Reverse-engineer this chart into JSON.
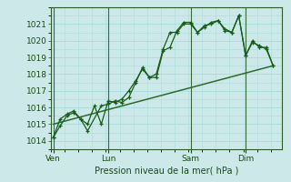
{
  "background_color": "#cce8e8",
  "grid_color": "#aadddd",
  "line_color_main": "#1a5c1a",
  "line_color_trend": "#2d6b2d",
  "xlabel": "Pression niveau de la mer( hPa )",
  "ylim": [
    1013.5,
    1022.0
  ],
  "yticks": [
    1014,
    1015,
    1016,
    1017,
    1018,
    1019,
    1020,
    1021
  ],
  "day_labels": [
    "Ven",
    "Lun",
    "Sam",
    "Dim"
  ],
  "day_positions": [
    0,
    48,
    120,
    168
  ],
  "series1_x": [
    0,
    6,
    12,
    18,
    24,
    30,
    42,
    48,
    54,
    60,
    66,
    72,
    78,
    84,
    90,
    96,
    102,
    108,
    114,
    120,
    126,
    132,
    138,
    144,
    150,
    156,
    162,
    168,
    174,
    180,
    186,
    192
  ],
  "series1_y": [
    1014.2,
    1014.9,
    1015.5,
    1015.7,
    1015.3,
    1014.6,
    1016.1,
    1016.2,
    1016.4,
    1016.3,
    1016.6,
    1017.5,
    1018.4,
    1017.8,
    1017.8,
    1019.4,
    1019.6,
    1020.6,
    1021.1,
    1021.1,
    1020.5,
    1020.9,
    1021.0,
    1021.2,
    1020.6,
    1020.5,
    1021.5,
    1019.1,
    1020.0,
    1019.6,
    1019.6,
    1018.5
  ],
  "series2_x": [
    0,
    6,
    12,
    18,
    24,
    30,
    36,
    42,
    48,
    54,
    60,
    66,
    72,
    78,
    84,
    90,
    96,
    102,
    108,
    114,
    120,
    126,
    132,
    138,
    144,
    150,
    156,
    162,
    168,
    174,
    180,
    186,
    192
  ],
  "series2_y": [
    1014.2,
    1015.3,
    1015.6,
    1015.8,
    1015.3,
    1015.0,
    1016.1,
    1015.0,
    1016.4,
    1016.3,
    1016.5,
    1017.0,
    1017.6,
    1018.3,
    1017.8,
    1018.0,
    1019.5,
    1020.5,
    1020.5,
    1021.0,
    1021.0,
    1020.5,
    1020.8,
    1021.1,
    1021.2,
    1020.7,
    1020.5,
    1021.5,
    1019.1,
    1019.9,
    1019.7,
    1019.5,
    1018.5
  ],
  "trend_x": [
    0,
    192
  ],
  "trend_y": [
    1015.0,
    1018.5
  ],
  "vline_positions": [
    0,
    48,
    120,
    168
  ],
  "xlim": [
    -2,
    200
  ]
}
